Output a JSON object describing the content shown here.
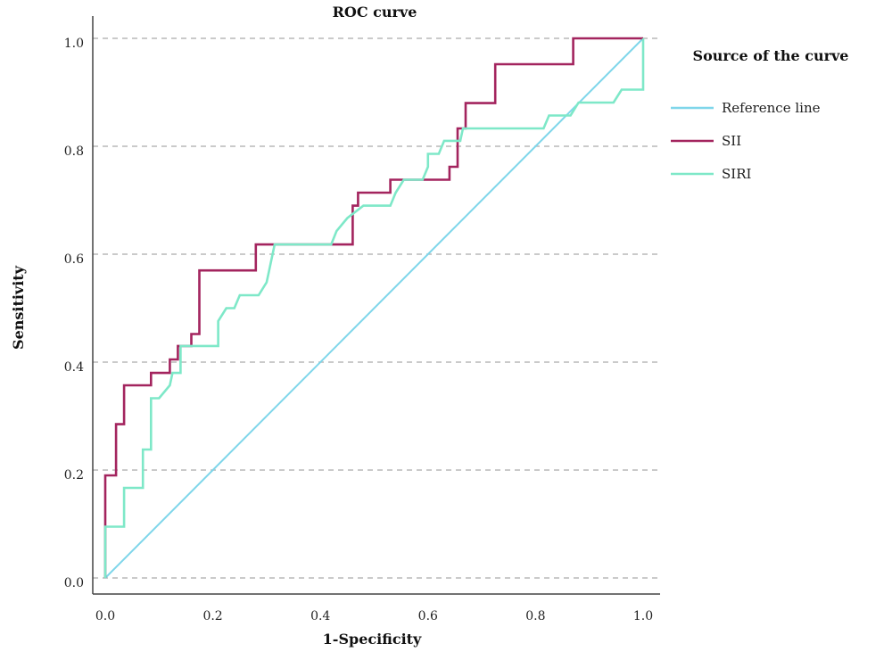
{
  "chart_data": {
    "type": "line",
    "title": "ROC curve",
    "xlabel": "1-Specificity",
    "ylabel": "Sensitivity",
    "xlim": [
      0,
      1
    ],
    "ylim": [
      0,
      1
    ],
    "x_ticks": [
      "0.0",
      "0.2",
      "0.4",
      "0.6",
      "0.8",
      "1.0"
    ],
    "y_ticks": [
      "0.0",
      "0.2",
      "0.4",
      "0.6",
      "0.8",
      "1.0"
    ],
    "grid": "horizontal dashed",
    "legend": {
      "title": "Source of the curve",
      "placement": "right",
      "entries": [
        {
          "name": "Reference line",
          "color": "#7fd6ea"
        },
        {
          "name": "SII",
          "color": "#a3245e"
        },
        {
          "name": "SIRI",
          "color": "#7ee8c8"
        }
      ]
    },
    "series": [
      {
        "name": "Reference line",
        "color": "#7fd6ea",
        "points": [
          [
            0,
            0
          ],
          [
            1,
            1
          ]
        ]
      },
      {
        "name": "SII",
        "color": "#a3245e",
        "points": [
          [
            0.0,
            0.0
          ],
          [
            0.0,
            0.1
          ],
          [
            0.0,
            0.19
          ],
          [
            0.02,
            0.19
          ],
          [
            0.02,
            0.285
          ],
          [
            0.035,
            0.285
          ],
          [
            0.035,
            0.357
          ],
          [
            0.085,
            0.357
          ],
          [
            0.085,
            0.38
          ],
          [
            0.12,
            0.38
          ],
          [
            0.12,
            0.405
          ],
          [
            0.135,
            0.405
          ],
          [
            0.135,
            0.43
          ],
          [
            0.16,
            0.43
          ],
          [
            0.16,
            0.452
          ],
          [
            0.175,
            0.452
          ],
          [
            0.175,
            0.57
          ],
          [
            0.28,
            0.57
          ],
          [
            0.28,
            0.618
          ],
          [
            0.46,
            0.618
          ],
          [
            0.46,
            0.69
          ],
          [
            0.47,
            0.69
          ],
          [
            0.47,
            0.714
          ],
          [
            0.53,
            0.714
          ],
          [
            0.53,
            0.738
          ],
          [
            0.64,
            0.738
          ],
          [
            0.64,
            0.762
          ],
          [
            0.655,
            0.762
          ],
          [
            0.655,
            0.833
          ],
          [
            0.67,
            0.833
          ],
          [
            0.67,
            0.88
          ],
          [
            0.725,
            0.88
          ],
          [
            0.725,
            0.952
          ],
          [
            0.87,
            0.952
          ],
          [
            0.87,
            1.0
          ],
          [
            1.0,
            1.0
          ]
        ]
      },
      {
        "name": "SIRI",
        "color": "#7ee8c8",
        "points": [
          [
            0.0,
            0.0
          ],
          [
            0.0,
            0.095
          ],
          [
            0.035,
            0.095
          ],
          [
            0.035,
            0.167
          ],
          [
            0.07,
            0.167
          ],
          [
            0.07,
            0.238
          ],
          [
            0.085,
            0.238
          ],
          [
            0.085,
            0.333
          ],
          [
            0.1,
            0.333
          ],
          [
            0.12,
            0.357
          ],
          [
            0.125,
            0.38
          ],
          [
            0.14,
            0.38
          ],
          [
            0.14,
            0.43
          ],
          [
            0.21,
            0.43
          ],
          [
            0.21,
            0.476
          ],
          [
            0.225,
            0.5
          ],
          [
            0.24,
            0.5
          ],
          [
            0.25,
            0.524
          ],
          [
            0.285,
            0.524
          ],
          [
            0.3,
            0.548
          ],
          [
            0.305,
            0.571
          ],
          [
            0.315,
            0.618
          ],
          [
            0.42,
            0.618
          ],
          [
            0.43,
            0.643
          ],
          [
            0.45,
            0.667
          ],
          [
            0.48,
            0.69
          ],
          [
            0.53,
            0.69
          ],
          [
            0.54,
            0.714
          ],
          [
            0.555,
            0.738
          ],
          [
            0.59,
            0.738
          ],
          [
            0.6,
            0.762
          ],
          [
            0.6,
            0.786
          ],
          [
            0.62,
            0.786
          ],
          [
            0.63,
            0.81
          ],
          [
            0.66,
            0.81
          ],
          [
            0.665,
            0.833
          ],
          [
            0.815,
            0.833
          ],
          [
            0.825,
            0.857
          ],
          [
            0.865,
            0.857
          ],
          [
            0.88,
            0.881
          ],
          [
            0.945,
            0.881
          ],
          [
            0.96,
            0.905
          ],
          [
            1.0,
            0.905
          ],
          [
            1.0,
            1.0
          ]
        ]
      }
    ]
  }
}
